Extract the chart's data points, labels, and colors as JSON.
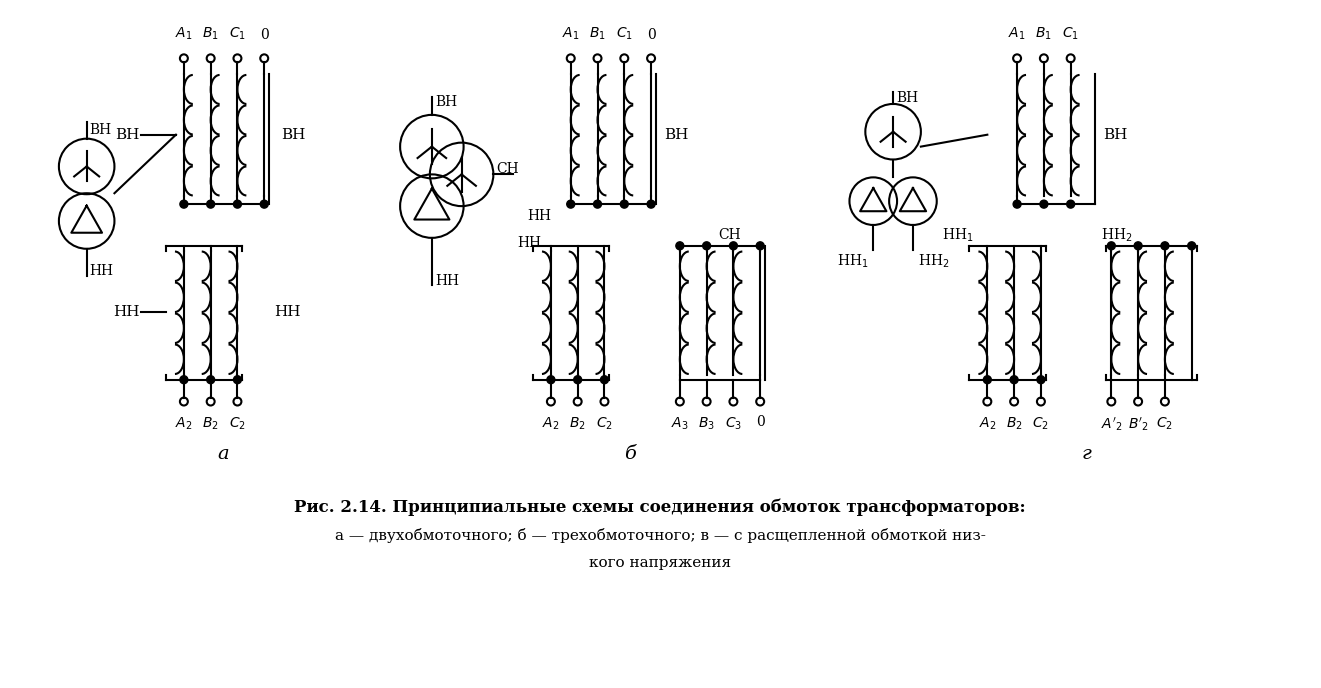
{
  "title": "Рис. 2.14. Принципиальные схемы соединения обмоток трансформаторов:",
  "subtitle1": "а — двухобмоточного; б — трехобмоточного; в — с расщепленной обмоткой низ-",
  "subtitle2": "кого напряжения",
  "bg_color": "#ffffff",
  "line_color": "#000000"
}
